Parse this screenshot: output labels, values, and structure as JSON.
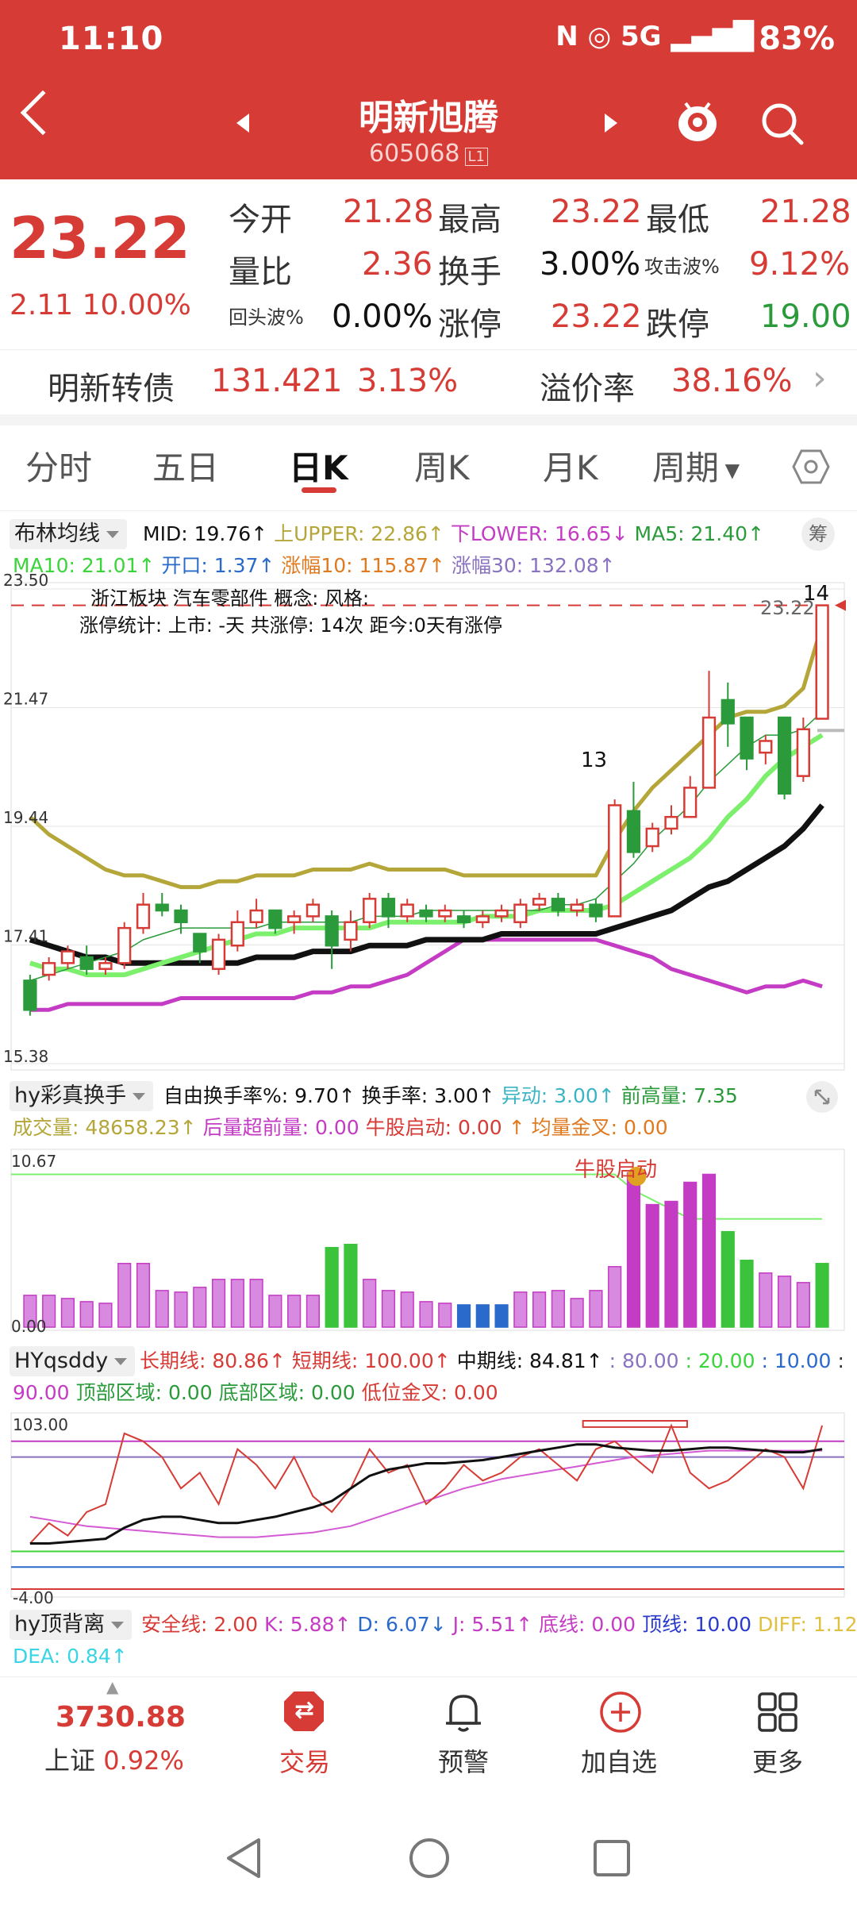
{
  "status_bar": {
    "time": "11:10",
    "icons": "N ◎ 5G ▂▄▆█",
    "battery": "83%"
  },
  "header": {
    "stock_name": "明新旭腾",
    "stock_code": "605068",
    "level_badge": "L1"
  },
  "quote": {
    "price": "23.22",
    "change": "2.11 10.00%",
    "open_label": "今开",
    "open": "21.28",
    "high_label": "最高",
    "high": "23.22",
    "low_label": "最低",
    "low": "21.28",
    "vol_ratio_label": "量比",
    "vol_ratio": "2.36",
    "turnover_label": "换手",
    "turnover": "3.00%",
    "attack_label": "攻击波%",
    "attack": "9.12%",
    "pullback_label": "回头波%",
    "pullback": "0.00%",
    "limit_up_label": "涨停",
    "limit_up": "23.22",
    "limit_down_label": "跌停",
    "limit_down": "19.00"
  },
  "bond": {
    "name": "明新转债",
    "price": "131.421",
    "pct": "3.13%",
    "premium_label": "溢价率",
    "premium": "38.16%"
  },
  "tabs": [
    "分时",
    "五日",
    "日K",
    "周K",
    "月K",
    "周期"
  ],
  "active_tab": "日K",
  "main_ind": {
    "selector": "布林均线",
    "line1": [
      {
        "t": "MID: 19.76",
        "c": "#111",
        "a": "↑"
      },
      {
        "t": "上UPPER: 22.86",
        "c": "#b5a63a",
        "a": "↑"
      },
      {
        "t": "下LOWER: 16.65",
        "c": "#c43bc4",
        "a": "↓"
      },
      {
        "t": "MA5: 21.40",
        "c": "#2a9a3a",
        "a": "↑"
      }
    ],
    "line2": [
      {
        "t": "MA10: 21.01",
        "c": "#3bd43b",
        "a": "↑"
      },
      {
        "t": "开口: 1.37",
        "c": "#2a6acb",
        "a": "↑"
      },
      {
        "t": "涨幅10: 115.87",
        "c": "#e07a20",
        "a": "↑"
      },
      {
        "t": "涨幅30: 132.08",
        "c": "#8a72c0",
        "a": "↑"
      }
    ],
    "chou_label": "筹",
    "info1": "浙江板块    汽车零部件    概念:        风格:",
    "info2": "涨停统计: 上市: -天 共涨停: 14次 距今:0天有涨停",
    "ylabels": [
      "23.50",
      "21.47",
      "19.44",
      "17.41",
      "15.38"
    ],
    "last_price_label": "23.22",
    "count_a": "14",
    "count_b": "13"
  },
  "vol_ind": {
    "selector": "hy彩真换手",
    "line1": [
      {
        "t": "自由换手率%: 9.70",
        "c": "#111",
        "a": "↑"
      },
      {
        "t": "换手率: 3.00",
        "c": "#111",
        "a": "↑"
      },
      {
        "t": "异动: 3.00",
        "c": "#3bb5c4",
        "a": "↑"
      },
      {
        "t": "前高量: 7.35",
        "c": "#2a9a3a",
        "a": ""
      }
    ],
    "line2": [
      {
        "t": "成交量: 48658.23",
        "c": "#b5a63a",
        "a": "↑"
      },
      {
        "t": "后量超前量: 0.00",
        "c": "#c43bc4",
        "a": ""
      },
      {
        "t": "牛股启动: 0.00",
        "c": "#d63b35",
        "a": ""
      },
      {
        "t": "↑ 均量金叉: 0.00",
        "c": "#e07a20",
        "a": ""
      }
    ],
    "ytop": "10.67",
    "ybot": "0.00",
    "signal": "牛股启动"
  },
  "osc_ind": {
    "selector": "HYqsddy",
    "line1": [
      {
        "t": "长期线: 80.86",
        "c": "#d63b35",
        "a": "↑"
      },
      {
        "t": "短期线: 100.00",
        "c": "#d63b35",
        "a": "↑"
      },
      {
        "t": "中期线: 84.81",
        "c": "#111",
        "a": "↑"
      },
      {
        "t": ": 80.00",
        "c": "#8a72c0",
        "a": ""
      },
      {
        "t": ": 20.00",
        "c": "#3bd43b",
        "a": ""
      },
      {
        "t": ": 10.00",
        "c": "#2a6acb",
        "a": ""
      },
      {
        "t": ":",
        "c": "#333",
        "a": ""
      }
    ],
    "line2": [
      {
        "t": "90.00",
        "c": "#c43bc4",
        "a": ""
      },
      {
        "t": "顶部区域: 0.00",
        "c": "#2a9a3a",
        "a": ""
      },
      {
        "t": "底部区域: 0.00",
        "c": "#2a9a3a",
        "a": ""
      },
      {
        "t": "低位金叉: 0.00",
        "c": "#d63b35",
        "a": ""
      }
    ],
    "ytop": "103.00",
    "ybot": "-4.00"
  },
  "back_ind": {
    "selector": "hy顶背离",
    "line1": [
      {
        "t": "安全线: 2.00",
        "c": "#d63b35",
        "a": ""
      },
      {
        "t": "K: 5.88",
        "c": "#c43bc4",
        "a": "↑"
      },
      {
        "t": "D: 6.07",
        "c": "#2a6acb",
        "a": "↓"
      },
      {
        "t": "J: 5.51",
        "c": "#c43bc4",
        "a": "↑"
      },
      {
        "t": "底线: 0.00",
        "c": "#c43bc4",
        "a": ""
      },
      {
        "t": "顶线: 10.00",
        "c": "#2a3acb",
        "a": ""
      },
      {
        "t": "DIFF: 1.12",
        "c": "#e0c040",
        "a": "↑"
      }
    ],
    "line2": [
      {
        "t": "DEA: 0.84",
        "c": "#3bd4e4",
        "a": "↑"
      }
    ]
  },
  "bottom_bar": {
    "index_value": "3730.88",
    "index_name": "上证",
    "index_pct": "0.92%",
    "trade": "交易",
    "alert": "预警",
    "add": "加自选",
    "more": "更多"
  },
  "chart_data": {
    "type": "candlestick",
    "ylim": [
      15.38,
      23.5
    ],
    "candles": [
      [
        16.8,
        16.3,
        16.9,
        16.2
      ],
      [
        16.9,
        17.1,
        17.2,
        16.8
      ],
      [
        17.1,
        17.3,
        17.4,
        17.0
      ],
      [
        17.2,
        17.0,
        17.4,
        16.9
      ],
      [
        17.0,
        17.1,
        17.2,
        16.9
      ],
      [
        17.1,
        17.7,
        17.8,
        17.0
      ],
      [
        17.7,
        18.1,
        18.3,
        17.6
      ],
      [
        18.1,
        18.0,
        18.3,
        17.9
      ],
      [
        18.0,
        17.8,
        18.1,
        17.6
      ],
      [
        17.6,
        17.3,
        17.6,
        17.1
      ],
      [
        17.0,
        17.5,
        17.6,
        16.9
      ],
      [
        17.4,
        17.8,
        18.0,
        17.3
      ],
      [
        17.8,
        18.0,
        18.2,
        17.7
      ],
      [
        18.0,
        17.7,
        18.0,
        17.6
      ],
      [
        17.8,
        17.9,
        18.0,
        17.6
      ],
      [
        17.9,
        18.1,
        18.2,
        17.8
      ],
      [
        17.9,
        17.4,
        18.0,
        17.0
      ],
      [
        17.5,
        17.8,
        18.0,
        17.3
      ],
      [
        17.8,
        18.2,
        18.3,
        17.7
      ],
      [
        18.2,
        17.9,
        18.3,
        17.7
      ],
      [
        17.9,
        18.1,
        18.2,
        17.8
      ],
      [
        18.0,
        17.9,
        18.1,
        17.8
      ],
      [
        17.9,
        18.0,
        18.1,
        17.8
      ],
      [
        17.9,
        17.8,
        18.0,
        17.7
      ],
      [
        17.8,
        17.9,
        18.0,
        17.7
      ],
      [
        17.9,
        18.0,
        18.1,
        17.8
      ],
      [
        17.8,
        18.1,
        18.2,
        17.7
      ],
      [
        18.1,
        18.2,
        18.3,
        18.0
      ],
      [
        18.2,
        18.0,
        18.3,
        17.9
      ],
      [
        18.0,
        18.1,
        18.2,
        17.9
      ],
      [
        18.1,
        17.9,
        18.2,
        17.8
      ],
      [
        17.9,
        19.8,
        19.9,
        17.9
      ],
      [
        19.7,
        19.0,
        20.2,
        18.9
      ],
      [
        19.1,
        19.4,
        19.5,
        19.0
      ],
      [
        19.4,
        19.6,
        19.8,
        19.3
      ],
      [
        19.6,
        20.1,
        20.3,
        19.6
      ],
      [
        20.1,
        21.3,
        22.1,
        20.1
      ],
      [
        21.6,
        21.2,
        21.9,
        20.8
      ],
      [
        21.3,
        20.6,
        21.3,
        20.4
      ],
      [
        20.7,
        20.9,
        21.0,
        20.5
      ],
      [
        21.3,
        20.0,
        21.3,
        19.9
      ],
      [
        20.3,
        21.1,
        21.3,
        20.2
      ],
      [
        21.28,
        23.22,
        23.22,
        21.28
      ]
    ],
    "upper": [
      19.6,
      19.3,
      19.1,
      18.9,
      18.7,
      18.6,
      18.6,
      18.5,
      18.4,
      18.4,
      18.5,
      18.5,
      18.6,
      18.6,
      18.6,
      18.7,
      18.7,
      18.7,
      18.8,
      18.7,
      18.7,
      18.7,
      18.7,
      18.6,
      18.6,
      18.6,
      18.6,
      18.6,
      18.6,
      18.6,
      18.6,
      19.2,
      19.7,
      20.1,
      20.4,
      20.7,
      21.0,
      21.3,
      21.4,
      21.4,
      21.5,
      21.8,
      22.9
    ],
    "mid": [
      17.5,
      17.4,
      17.3,
      17.2,
      17.2,
      17.1,
      17.1,
      17.1,
      17.1,
      17.1,
      17.1,
      17.1,
      17.2,
      17.2,
      17.2,
      17.3,
      17.3,
      17.3,
      17.4,
      17.4,
      17.4,
      17.5,
      17.5,
      17.5,
      17.5,
      17.6,
      17.6,
      17.6,
      17.6,
      17.6,
      17.6,
      17.7,
      17.8,
      17.9,
      18.0,
      18.2,
      18.4,
      18.5,
      18.7,
      18.9,
      19.1,
      19.4,
      19.8
    ],
    "lower": [
      16.3,
      16.3,
      16.4,
      16.4,
      16.4,
      16.4,
      16.4,
      16.4,
      16.5,
      16.5,
      16.5,
      16.5,
      16.5,
      16.5,
      16.5,
      16.6,
      16.6,
      16.7,
      16.7,
      16.8,
      16.9,
      17.1,
      17.3,
      17.5,
      17.5,
      17.5,
      17.5,
      17.5,
      17.5,
      17.5,
      17.5,
      17.4,
      17.3,
      17.2,
      17.0,
      16.9,
      16.8,
      16.7,
      16.6,
      16.7,
      16.7,
      16.8,
      16.7
    ],
    "ma5": [
      16.8,
      16.9,
      17.0,
      17.1,
      17.2,
      17.3,
      17.5,
      17.6,
      17.7,
      17.7,
      17.7,
      17.7,
      17.7,
      17.8,
      17.8,
      17.8,
      17.8,
      17.8,
      17.9,
      17.9,
      17.9,
      18.0,
      18.0,
      18.0,
      18.0,
      18.0,
      18.0,
      18.0,
      18.1,
      18.1,
      18.2,
      18.5,
      18.8,
      19.2,
      19.5,
      19.8,
      20.2,
      20.5,
      20.8,
      21.0,
      21.0,
      21.1,
      21.4
    ],
    "ma10": [
      17.1,
      17.0,
      17.0,
      16.9,
      16.9,
      16.9,
      17.0,
      17.1,
      17.2,
      17.3,
      17.4,
      17.5,
      17.6,
      17.6,
      17.7,
      17.7,
      17.7,
      17.7,
      17.7,
      17.8,
      17.8,
      17.8,
      17.8,
      17.8,
      17.9,
      17.9,
      17.9,
      18.0,
      18.0,
      18.0,
      18.0,
      18.1,
      18.3,
      18.5,
      18.7,
      18.9,
      19.2,
      19.6,
      19.9,
      20.3,
      20.6,
      20.8,
      21.0
    ],
    "volumes": [
      2.0,
      2.0,
      1.8,
      1.6,
      1.5,
      4.0,
      4.0,
      2.3,
      2.2,
      2.5,
      3.0,
      3.0,
      3.0,
      2.0,
      2.0,
      2.0,
      5.0,
      5.2,
      3.0,
      2.3,
      2.2,
      1.6,
      1.5,
      1.4,
      1.4,
      1.4,
      2.2,
      2.2,
      2.3,
      1.8,
      2.3,
      3.8,
      9.7,
      7.7,
      7.9,
      9.1,
      9.6,
      6.0,
      4.2,
      3.4,
      3.2,
      2.8,
      4.0
    ],
    "vol_colors": [
      "m",
      "m",
      "m",
      "m",
      "m",
      "m",
      "m",
      "m",
      "m",
      "m",
      "m",
      "m",
      "m",
      "m",
      "m",
      "m",
      "g",
      "g",
      "m",
      "m",
      "m",
      "m",
      "m",
      "b",
      "b",
      "b",
      "m",
      "m",
      "m",
      "m",
      "m",
      "m",
      "m",
      "m",
      "m",
      "m",
      "m",
      "g",
      "g",
      "m",
      "m",
      "m",
      "g"
    ],
    "vol_ylim": [
      0,
      10.67
    ],
    "osc_ylim": [
      -4,
      103
    ],
    "osc_red": [
      25,
      38,
      30,
      45,
      50,
      95,
      90,
      80,
      60,
      70,
      50,
      85,
      75,
      60,
      80,
      55,
      45,
      60,
      85,
      70,
      75,
      50,
      60,
      75,
      65,
      70,
      80,
      85,
      75,
      65,
      85,
      90,
      80,
      70,
      100,
      70,
      60,
      65,
      75,
      85,
      80,
      60,
      100
    ],
    "osc_black": [
      25,
      25,
      26,
      27,
      28,
      35,
      40,
      42,
      42,
      40,
      38,
      38,
      40,
      42,
      45,
      48,
      52,
      60,
      68,
      72,
      74,
      76,
      76,
      77,
      78,
      80,
      82,
      84,
      86,
      88,
      88,
      86,
      85,
      84,
      84,
      85,
      86,
      86,
      85,
      84,
      83,
      83,
      85
    ],
    "osc_magenta": [
      42,
      40,
      38,
      36,
      35,
      34,
      33,
      32,
      31,
      30,
      29,
      29,
      29,
      30,
      31,
      32,
      34,
      36,
      40,
      44,
      48,
      52,
      56,
      60,
      63,
      66,
      68,
      70,
      72,
      74,
      76,
      78,
      80,
      81,
      82,
      83,
      84,
      84,
      84,
      84,
      84,
      84,
      84
    ],
    "osc_levels": {
      "90": "#c43bc4",
      "80": "#8a72c0",
      "20": "#3bd43b",
      "10": "#2a6acb"
    }
  }
}
